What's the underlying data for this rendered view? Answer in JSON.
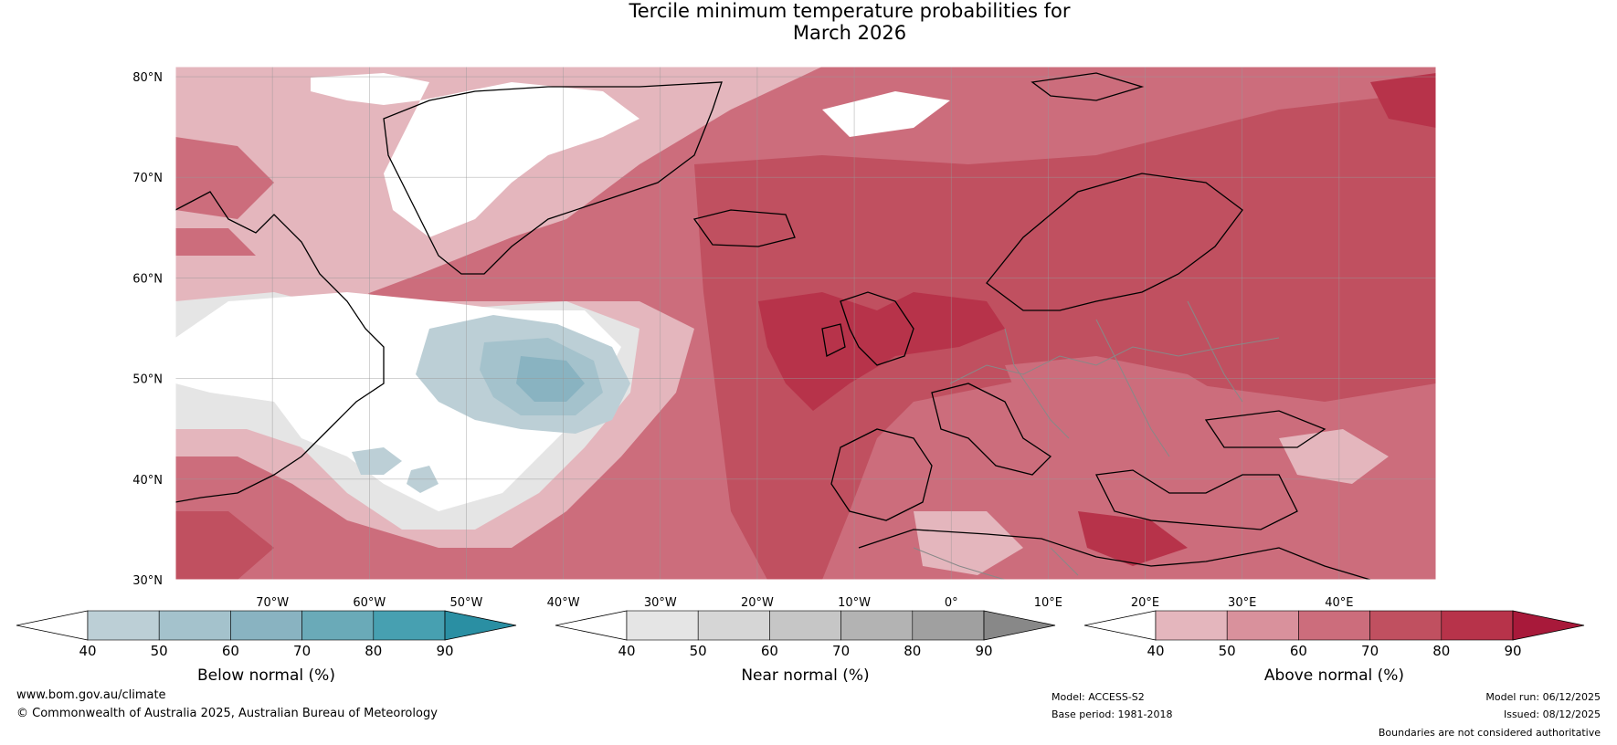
{
  "title": {
    "line1": "Tercile minimum temperature probabilities for",
    "line2": "March 2026"
  },
  "map": {
    "lat_range": [
      30,
      81
    ],
    "lon_range": [
      -80,
      50
    ],
    "lat_ticks": [
      {
        "value": 30,
        "label": "30°N"
      },
      {
        "value": 40,
        "label": "40°N"
      },
      {
        "value": 50,
        "label": "50°N"
      },
      {
        "value": 60,
        "label": "60°N"
      },
      {
        "value": 70,
        "label": "70°N"
      },
      {
        "value": 80,
        "label": "80°N"
      }
    ],
    "lon_ticks": [
      {
        "value": -70,
        "label": "70°W"
      },
      {
        "value": -60,
        "label": "60°W"
      },
      {
        "value": -50,
        "label": "50°W"
      },
      {
        "value": -40,
        "label": "40°W"
      },
      {
        "value": -30,
        "label": "30°W"
      },
      {
        "value": -20,
        "label": "20°W"
      },
      {
        "value": -10,
        "label": "10°W"
      },
      {
        "value": 0,
        "label": "0°"
      },
      {
        "value": 10,
        "label": "10°E"
      },
      {
        "value": 20,
        "label": "20°E"
      },
      {
        "value": 30,
        "label": "30°E"
      },
      {
        "value": 40,
        "label": "40°E"
      }
    ]
  },
  "colors": {
    "below": [
      "#bccfd6",
      "#a4c2cc",
      "#89b3c1",
      "#6aaab8",
      "#47a0b1",
      "#2a8fa3"
    ],
    "near": [
      "#e5e5e5",
      "#d6d6d6",
      "#c6c6c6",
      "#b3b3b3",
      "#a0a0a0",
      "#888888"
    ],
    "above": [
      "#e4b6bd",
      "#d9919c",
      "#cc6d7c",
      "#c05060",
      "#b7334a",
      "#a8193a"
    ],
    "land_outline": "#000000",
    "border": "#888888",
    "grid": "#999999"
  },
  "colorbars": [
    {
      "key": "below",
      "label": "Below normal (%)",
      "ticks": [
        "40",
        "50",
        "60",
        "70",
        "80",
        "90"
      ]
    },
    {
      "key": "near",
      "label": "Near normal (%)",
      "ticks": [
        "40",
        "50",
        "60",
        "70",
        "80",
        "90"
      ]
    },
    {
      "key": "above",
      "label": "Above normal (%)",
      "ticks": [
        "40",
        "50",
        "60",
        "70",
        "80",
        "90"
      ]
    }
  ],
  "footer": {
    "website": "www.bom.gov.au/climate",
    "copyright": "© Commonwealth of Australia 2025, Australian Bureau of Meteorology",
    "model": "Model: ACCESS-S2",
    "base_period": "Base period: 1981-2018",
    "model_run": "Model run: 06/12/2025",
    "issued": "Issued: 08/12/2025",
    "disclaimer": "Boundaries are not considered authoritative"
  }
}
